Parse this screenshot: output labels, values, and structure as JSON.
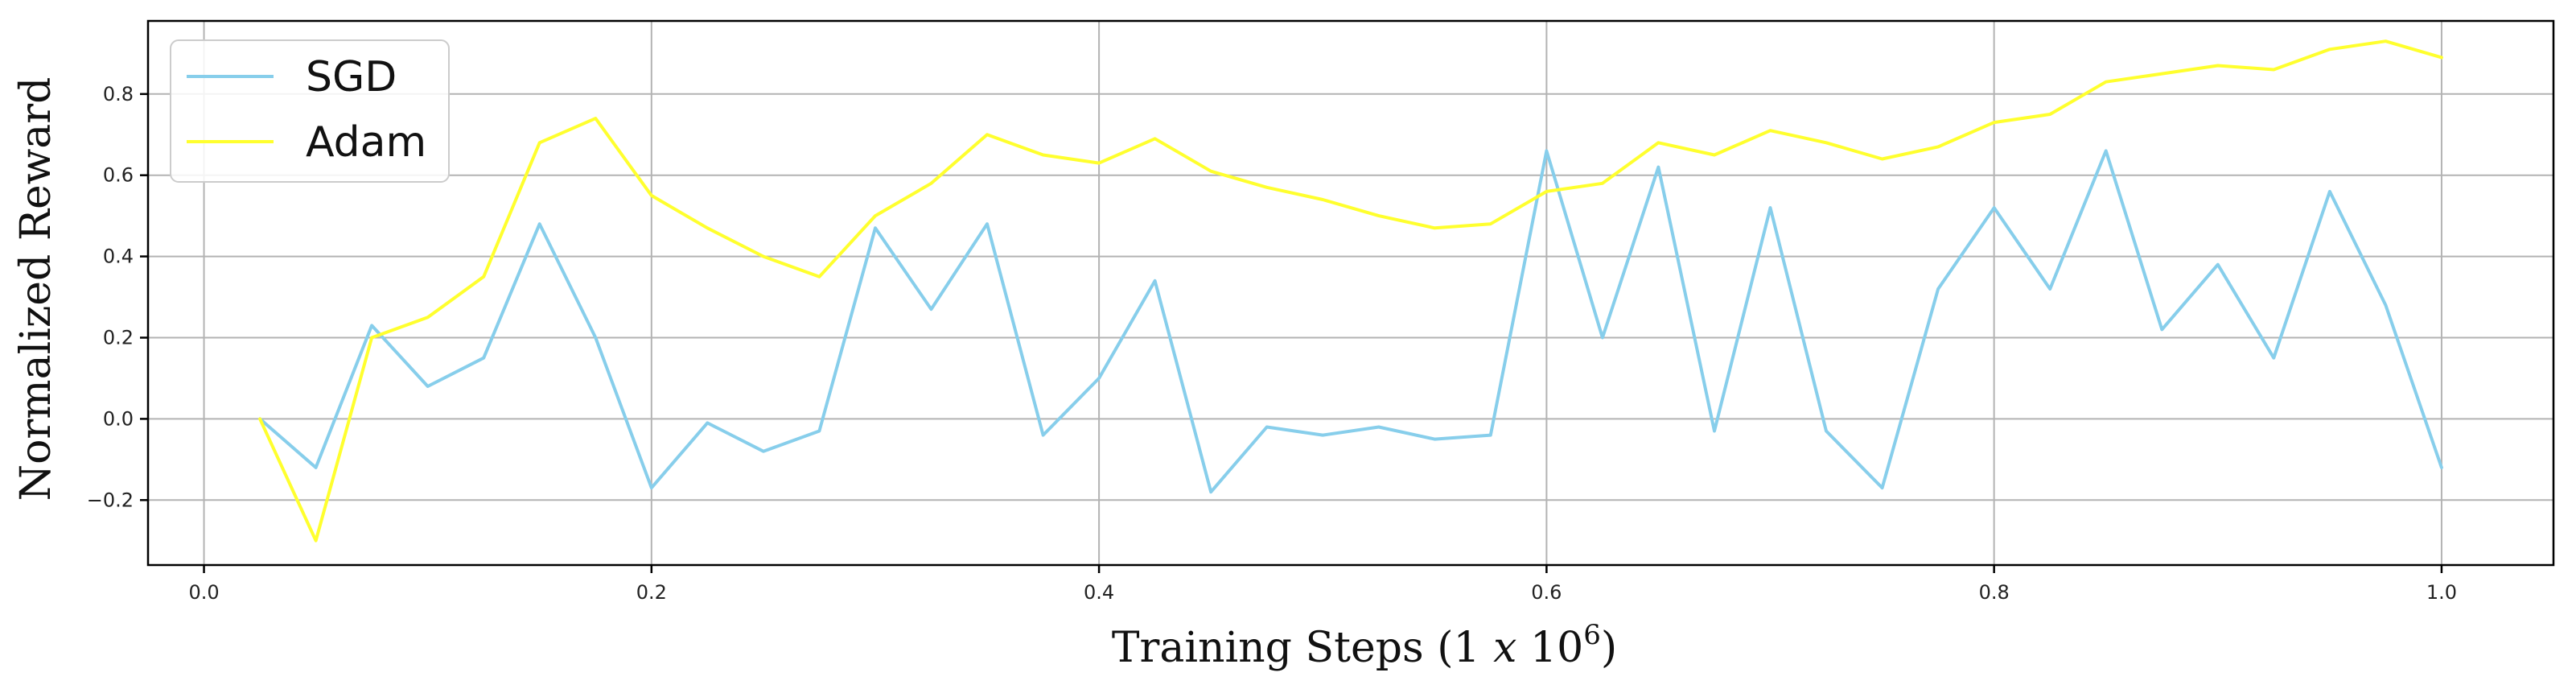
{
  "chart_data": {
    "type": "line",
    "title": "",
    "xlabel": "Training Steps (1 ",
    "xlabel_italic": "x",
    "xlabel_tail": " 10",
    "xlabel_exp": "6",
    "xlabel_close": ")",
    "ylabel": "Normalized Reward",
    "xlim": [
      -0.025,
      1.05
    ],
    "ylim": [
      -0.36,
      0.98
    ],
    "xticks": [
      0.0,
      0.2,
      0.4,
      0.6,
      0.8,
      1.0
    ],
    "xtick_labels": [
      "0.0",
      "0.2",
      "0.4",
      "0.6",
      "0.8",
      "1.0"
    ],
    "yticks": [
      -0.2,
      0.0,
      0.2,
      0.4,
      0.6,
      0.8
    ],
    "ytick_labels": [
      "−0.2",
      "0.0",
      "0.2",
      "0.4",
      "0.6",
      "0.8"
    ],
    "grid": true,
    "legend_position": "top-left",
    "x": [
      0.025,
      0.05,
      0.075,
      0.1,
      0.125,
      0.15,
      0.175,
      0.2,
      0.225,
      0.25,
      0.275,
      0.3,
      0.325,
      0.35,
      0.375,
      0.4,
      0.425,
      0.45,
      0.475,
      0.5,
      0.525,
      0.55,
      0.575,
      0.6,
      0.625,
      0.65,
      0.675,
      0.7,
      0.725,
      0.75,
      0.775,
      0.8,
      0.825,
      0.85,
      0.875,
      0.9,
      0.925,
      0.95,
      0.975,
      1.0
    ],
    "series": [
      {
        "name": "SGD",
        "color": "#87ceeb",
        "values": [
          0.0,
          -0.12,
          0.23,
          0.08,
          0.15,
          0.48,
          0.2,
          -0.17,
          -0.01,
          -0.08,
          -0.03,
          0.47,
          0.27,
          0.48,
          -0.04,
          0.1,
          0.34,
          -0.18,
          -0.02,
          -0.04,
          -0.02,
          -0.05,
          -0.04,
          0.66,
          0.2,
          0.62,
          -0.03,
          0.52,
          -0.03,
          -0.17,
          0.32,
          0.52,
          0.32,
          0.66,
          0.22,
          0.38,
          0.15,
          0.56,
          0.28,
          -0.12
        ]
      },
      {
        "name": "Adam",
        "color": "#ffff2e",
        "values": [
          0.0,
          -0.3,
          0.2,
          0.25,
          0.35,
          0.68,
          0.74,
          0.55,
          0.47,
          0.4,
          0.35,
          0.5,
          0.58,
          0.7,
          0.65,
          0.63,
          0.69,
          0.61,
          0.57,
          0.54,
          0.5,
          0.47,
          0.48,
          0.56,
          0.58,
          0.68,
          0.65,
          0.71,
          0.68,
          0.64,
          0.67,
          0.73,
          0.75,
          0.83,
          0.85,
          0.87,
          0.86,
          0.91,
          0.93,
          0.89
        ]
      }
    ]
  }
}
